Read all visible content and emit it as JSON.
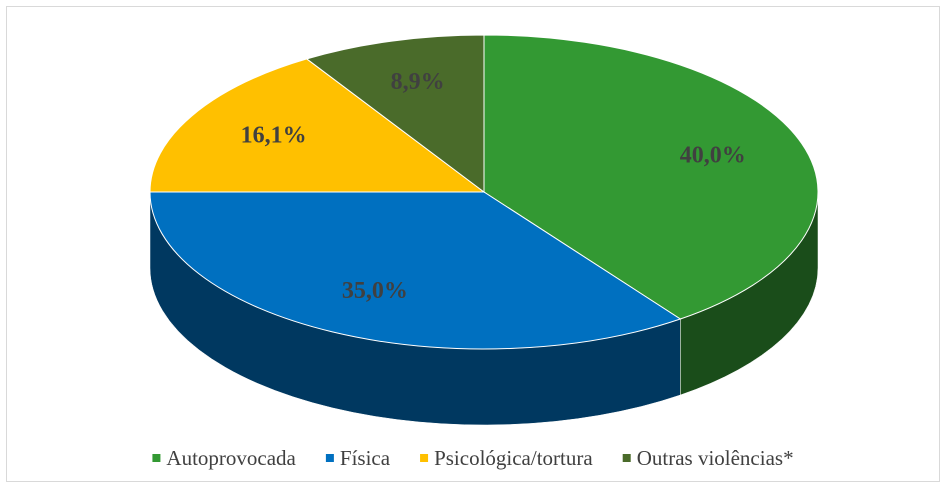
{
  "chart_data": {
    "type": "pie",
    "categories": [
      "Autoprovocada",
      "Física",
      "Psicológica/tortura",
      "Outras violências*"
    ],
    "values": [
      40.0,
      35.0,
      16.1,
      8.9
    ],
    "value_labels": [
      "40,0%",
      "35,0%",
      "16,1%",
      "8,9%"
    ],
    "colors": [
      "#339933",
      "#0070c0",
      "#ffc000",
      "#4a6b2a"
    ],
    "legend": "bottom"
  }
}
